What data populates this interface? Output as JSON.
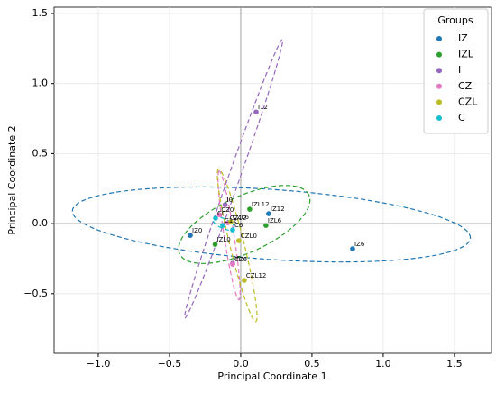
{
  "chart_data": {
    "type": "scatter",
    "xlabel": "Principal Coordinate 1",
    "ylabel": "Principal Coordinate 2",
    "xlim": [
      -1.31,
      1.76
    ],
    "ylim": [
      -0.926,
      1.545
    ],
    "xticks": [
      {
        "value": -1.0,
        "label": "−1.0"
      },
      {
        "value": -0.5,
        "label": "−0.5"
      },
      {
        "value": 0,
        "label": "0.0"
      },
      0.5,
      {
        "value": 1,
        "label": "1.0"
      },
      1.5
    ],
    "yticks": [
      {
        "value": -0.5,
        "label": "−0.5"
      },
      {
        "value": 0,
        "label": "0.0"
      },
      0.5,
      {
        "value": 1,
        "label": "1.0"
      },
      1.5
    ],
    "grid": true,
    "zero_lines": true,
    "legend_title": "Groups",
    "legend_position": "upper right",
    "series": [
      {
        "name": "IZ",
        "color": "#1f77b4",
        "labels": [
          "IZ0",
          "IZ12",
          "IZ6"
        ],
        "x": [
          -0.354,
          0.196,
          0.785
        ],
        "values": [
          -0.084,
          0.071,
          -0.18
        ],
        "ellipse": {
          "cx": 0.215,
          "cy": -0.006,
          "rx": 1.4,
          "ry": 0.25,
          "angle": -4
        }
      },
      {
        "name": "IZL",
        "color": "#2ca02c",
        "labels": [
          "IZL12",
          "IZL6",
          "IZL0"
        ],
        "x": [
          0.063,
          0.177,
          -0.18
        ],
        "values": [
          0.103,
          -0.013,
          -0.148
        ],
        "ellipse": {
          "cx": 0.025,
          "cy": -0.006,
          "rx": 0.5,
          "ry": 0.2,
          "angle": 25
        }
      },
      {
        "name": "I",
        "color": "#9467bd",
        "labels": [
          "I12",
          "I0",
          "I6"
        ],
        "x": [
          0.108,
          -0.11,
          -0.057
        ],
        "values": [
          0.797,
          0.135,
          -0.283
        ],
        "ellipse": {
          "cx": -0.05,
          "cy": 0.32,
          "rx": 1.05,
          "ry": 0.04,
          "angle": 71
        }
      },
      {
        "name": "CZ",
        "color": "#e377c2",
        "labels": [
          "CZ0",
          "CZ6",
          "CZ12"
        ],
        "x": [
          -0.15,
          -0.057,
          -0.09
        ],
        "values": [
          0.064,
          -0.29,
          0.006
        ],
        "ellipse": {
          "cx": -0.082,
          "cy": -0.084,
          "rx": 0.465,
          "ry": 0.035,
          "angle": 98.6
        }
      },
      {
        "name": "CZL",
        "color": "#bcbd22",
        "labels": [
          "CZL0",
          "CZL12",
          "CZL6"
        ],
        "x": [
          -0.013,
          0.025,
          -0.07
        ],
        "values": [
          -0.122,
          -0.405,
          0.013
        ],
        "ellipse": {
          "cx": -0.025,
          "cy": -0.155,
          "rx": 0.56,
          "ry": 0.05,
          "angle": 103.5
        }
      },
      {
        "name": "C",
        "color": "#17becf",
        "labels": [
          "C0",
          "C6",
          "C12"
        ],
        "x": [
          -0.177,
          -0.057,
          -0.127
        ],
        "values": [
          0.039,
          -0.045,
          -0.013
        ],
        "ellipse": {
          "cx": -0.12,
          "cy": 0.0,
          "rx": 0.08,
          "ry": 0.035,
          "angle": -25
        }
      }
    ]
  }
}
